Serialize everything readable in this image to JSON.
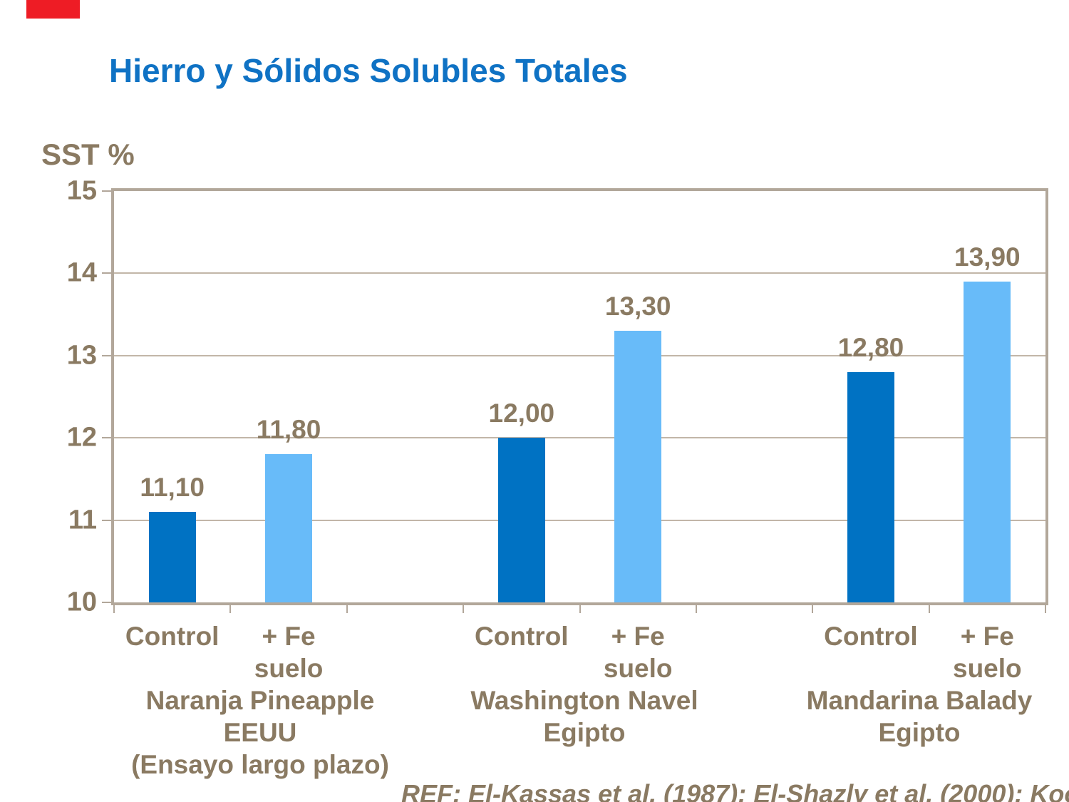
{
  "slide": {
    "title": "Hierro y Sólidos Solubles Totales",
    "title_color": "#0f72c4",
    "text_color": "#8a7a62",
    "corner_marker_color": "#ee1c25",
    "reference": "REF: El-Kassas et al. (1987); El-Shazly et al. (2000); Koo"
  },
  "chart_data": {
    "type": "bar",
    "title": "Hierro y Sólidos Solubles Totales",
    "ylabel": "SST %",
    "xlabel": "",
    "ylim": [
      10,
      15
    ],
    "yticks": [
      "10",
      "11",
      "12",
      "13",
      "14",
      "15"
    ],
    "grid": true,
    "legend_position": "none",
    "frame_color": "#b2a79a",
    "gridline_color": "#c2b6a8",
    "series_colors": {
      "control": "#0072c3",
      "fe_suelo": "#68bbf9"
    },
    "groups": [
      {
        "group_label_lines": [
          "Naranja Pineapple",
          "EEUU",
          "(Ensayo largo plazo)"
        ],
        "bars": [
          {
            "category_lines": [
              "Control"
            ],
            "series": "control",
            "value": 11.1,
            "value_label": "11,10"
          },
          {
            "category_lines": [
              "+ Fe",
              "suelo"
            ],
            "series": "fe_suelo",
            "value": 11.8,
            "value_label": "11,80"
          }
        ]
      },
      {
        "group_label_lines": [
          "Washington Navel",
          "Egipto"
        ],
        "bars": [
          {
            "category_lines": [
              "Control"
            ],
            "series": "control",
            "value": 12.0,
            "value_label": "12,00"
          },
          {
            "category_lines": [
              "+ Fe",
              "suelo"
            ],
            "series": "fe_suelo",
            "value": 13.3,
            "value_label": "13,30"
          }
        ]
      },
      {
        "group_label_lines": [
          "Mandarina Balady",
          "Egipto"
        ],
        "bars": [
          {
            "category_lines": [
              "Control"
            ],
            "series": "control",
            "value": 12.8,
            "value_label": "12,80"
          },
          {
            "category_lines": [
              "+ Fe",
              "suelo"
            ],
            "series": "fe_suelo",
            "value": 13.9,
            "value_label": "13,90"
          }
        ]
      }
    ]
  }
}
